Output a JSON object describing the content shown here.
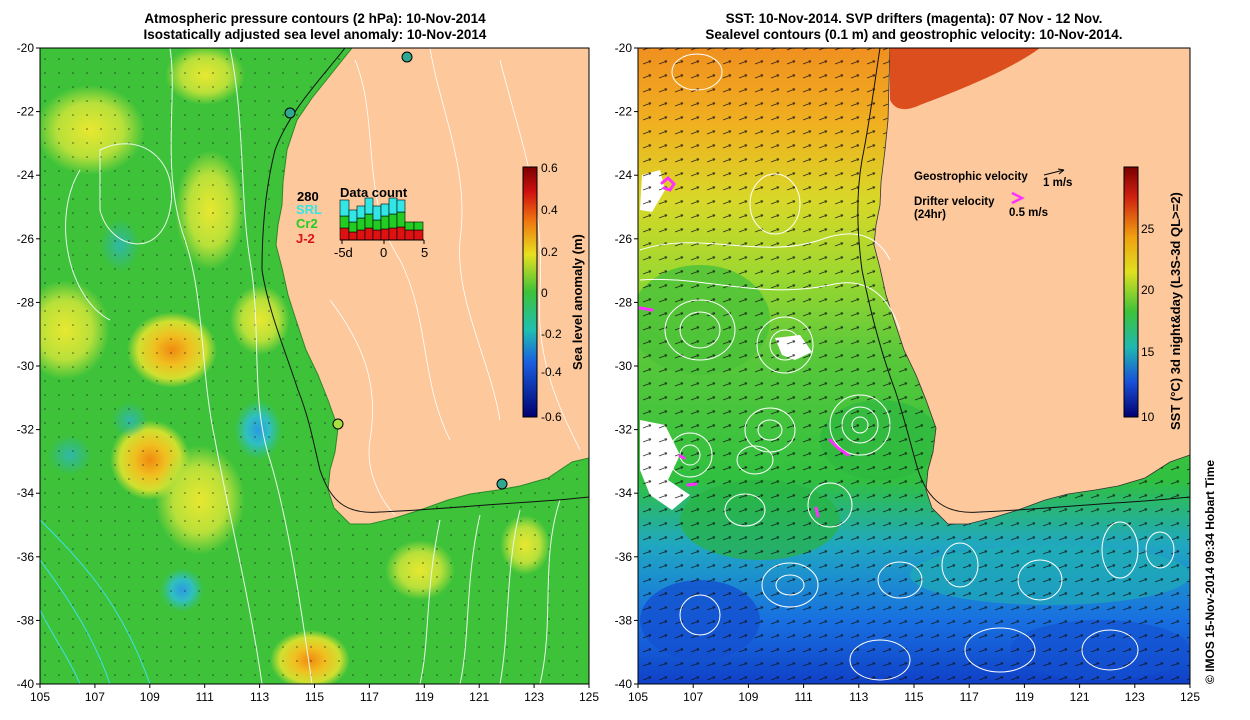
{
  "left_panel": {
    "title_line1": "Atmospheric pressure contours (2 hPa): 10-Nov-2014",
    "title_line2": "Isostatically adjusted sea level anomaly: 10-Nov-2014",
    "colorbar_label": "Sea level anomaly (m)",
    "colorbar_ticks": [
      "0.6",
      "0.4",
      "0.2",
      "0",
      "-0.2",
      "-0.4",
      "-0.6"
    ],
    "data_count": {
      "title": "Data count",
      "count": "280",
      "satellites": [
        {
          "name": "SRL",
          "color": "#33e6e6"
        },
        {
          "name": "Cr2",
          "color": "#22cc22"
        },
        {
          "name": "J-2",
          "color": "#dd1111"
        }
      ],
      "x_ticks": [
        "-5d",
        "0",
        "5"
      ]
    }
  },
  "right_panel": {
    "title_line1": "SST: 10-Nov-2014. SVP drifters (magenta): 07 Nov - 12 Nov.",
    "title_line2": "Sealevel contours (0.1 m) and geostrophic velocity: 10-Nov-2014.",
    "colorbar_label": "SST (°C) 3d night&day (L3S-3d QL>=2)",
    "colorbar_ticks": [
      "25",
      "20",
      "15",
      "10"
    ],
    "legend": {
      "geo_label": "Geostrophic velocity",
      "geo_scale": "1 m/s",
      "drifter_label": "Drifter velocity",
      "drifter_sub": "(24hr)",
      "drifter_scale": "0.5 m/s"
    }
  },
  "axes": {
    "x_ticks": [
      "105",
      "107",
      "109",
      "111",
      "113",
      "115",
      "117",
      "119",
      "121",
      "123",
      "125"
    ],
    "y_ticks": [
      "-20",
      "-22",
      "-24",
      "-26",
      "-28",
      "-30",
      "-32",
      "-34",
      "-36",
      "-38",
      "-40"
    ]
  },
  "copyright": "© IMOS 15-Nov-2014 09:34 Hobart Time",
  "colors": {
    "land": "#fcc89c",
    "ocean_green": "#3dc23a"
  }
}
